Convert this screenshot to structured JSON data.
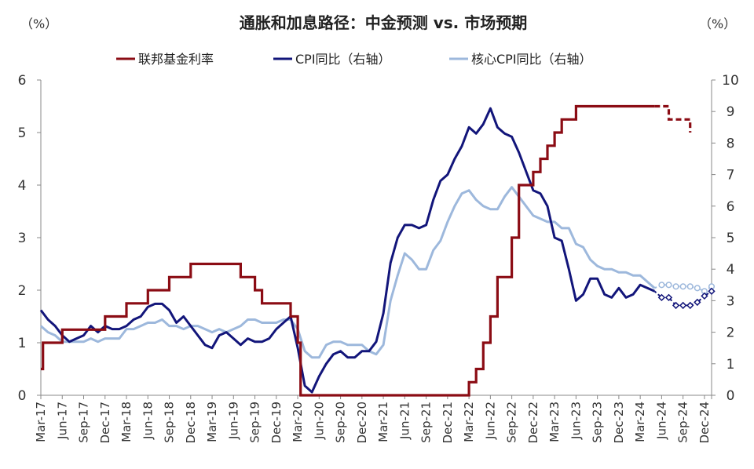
{
  "chart_data": {
    "type": "line",
    "title": "通胀和加息路径：中金预测 vs. 市场预期",
    "left_unit": "（%）",
    "right_unit": "（%）",
    "left_axis": {
      "min": 0,
      "max": 6,
      "step": 1,
      "ticks": [
        "0",
        "1",
        "2",
        "3",
        "4",
        "5",
        "6"
      ]
    },
    "right_axis": {
      "min": 0,
      "max": 10,
      "step": 1,
      "ticks": [
        "0",
        "1",
        "2",
        "3",
        "4",
        "5",
        "6",
        "7",
        "8",
        "9",
        "10"
      ]
    },
    "legend": [
      "联邦基金利率",
      "CPI同比（右轴）",
      "核心CPI同比（右轴）"
    ],
    "x_start": "2017-03",
    "x_end": "2024-12",
    "x_tick_labels": [
      "Mar-17",
      "Jun-17",
      "Sep-17",
      "Dec-17",
      "Mar-18",
      "Jun-18",
      "Sep-18",
      "Dec-18",
      "Mar-19",
      "Jun-19",
      "Sep-19",
      "Dec-19",
      "Mar-20",
      "Jun-20",
      "Sep-20",
      "Dec-20",
      "Mar-21",
      "Jun-21",
      "Sep-21",
      "Dec-21",
      "Mar-22",
      "Jun-22",
      "Sep-22",
      "Dec-22",
      "Mar-23",
      "Jun-23",
      "Sep-23",
      "Dec-23",
      "Mar-24",
      "Jun-24",
      "Sep-24",
      "Dec-24"
    ],
    "colors": {
      "fed": "#8b0c14",
      "cpi": "#12157a",
      "core": "#9db8dc",
      "axis": "#888888"
    },
    "series": [
      {
        "name": "联邦基金利率",
        "axis": "left",
        "style": "step",
        "history": [
          [
            0,
            0.5
          ],
          [
            0.3,
            1.0
          ],
          [
            3,
            1.25
          ],
          [
            9,
            1.5
          ],
          [
            12,
            1.75
          ],
          [
            15,
            2.0
          ],
          [
            18,
            2.25
          ],
          [
            21,
            2.5
          ],
          [
            28,
            2.25
          ],
          [
            30,
            2.0
          ],
          [
            31,
            1.75
          ],
          [
            35,
            1.5
          ],
          [
            36,
            1.0
          ],
          [
            36.4,
            0.0
          ],
          [
            60,
            0.25
          ],
          [
            61,
            0.5
          ],
          [
            62,
            1.0
          ],
          [
            63,
            1.5
          ],
          [
            64,
            2.25
          ],
          [
            66,
            3.0
          ],
          [
            67,
            4.0
          ],
          [
            69,
            4.25
          ],
          [
            70,
            4.5
          ],
          [
            71,
            4.75
          ],
          [
            72,
            5.0
          ],
          [
            73,
            5.25
          ],
          [
            75,
            5.5
          ],
          [
            86,
            5.5
          ]
        ],
        "forecast": [
          [
            86,
            5.5
          ],
          [
            87,
            5.5
          ],
          [
            88,
            5.25
          ],
          [
            90,
            5.25
          ],
          [
            91,
            5.0
          ]
        ]
      },
      {
        "name": "CPI同比（右轴）",
        "axis": "right",
        "history": [
          [
            0,
            2.7
          ],
          [
            1,
            2.4
          ],
          [
            2,
            2.2
          ],
          [
            3,
            1.9
          ],
          [
            4,
            1.7
          ],
          [
            5,
            1.8
          ],
          [
            6,
            1.9
          ],
          [
            7,
            2.2
          ],
          [
            8,
            2.0
          ],
          [
            9,
            2.2
          ],
          [
            10,
            2.1
          ],
          [
            11,
            2.1
          ],
          [
            12,
            2.2
          ],
          [
            13,
            2.4
          ],
          [
            14,
            2.5
          ],
          [
            15,
            2.8
          ],
          [
            16,
            2.9
          ],
          [
            17,
            2.9
          ],
          [
            18,
            2.7
          ],
          [
            19,
            2.3
          ],
          [
            20,
            2.5
          ],
          [
            21,
            2.2
          ],
          [
            22,
            1.9
          ],
          [
            23,
            1.6
          ],
          [
            24,
            1.5
          ],
          [
            25,
            1.9
          ],
          [
            26,
            2.0
          ],
          [
            27,
            1.8
          ],
          [
            28,
            1.6
          ],
          [
            29,
            1.8
          ],
          [
            30,
            1.7
          ],
          [
            31,
            1.7
          ],
          [
            32,
            1.8
          ],
          [
            33,
            2.1
          ],
          [
            34,
            2.3
          ],
          [
            35,
            2.5
          ],
          [
            36,
            1.5
          ],
          [
            37,
            0.3
          ],
          [
            38,
            0.1
          ],
          [
            39,
            0.6
          ],
          [
            40,
            1.0
          ],
          [
            41,
            1.3
          ],
          [
            42,
            1.4
          ],
          [
            43,
            1.2
          ],
          [
            44,
            1.2
          ],
          [
            45,
            1.4
          ],
          [
            46,
            1.4
          ],
          [
            47,
            1.7
          ],
          [
            48,
            2.6
          ],
          [
            49,
            4.2
          ],
          [
            50,
            5.0
          ],
          [
            51,
            5.4
          ],
          [
            52,
            5.4
          ],
          [
            53,
            5.3
          ],
          [
            54,
            5.4
          ],
          [
            55,
            6.2
          ],
          [
            56,
            6.8
          ],
          [
            57,
            7.0
          ],
          [
            58,
            7.5
          ],
          [
            59,
            7.9
          ],
          [
            60,
            8.5
          ],
          [
            61,
            8.3
          ],
          [
            62,
            8.6
          ],
          [
            63,
            9.1
          ],
          [
            64,
            8.5
          ],
          [
            65,
            8.3
          ],
          [
            66,
            8.2
          ],
          [
            67,
            7.7
          ],
          [
            68,
            7.1
          ],
          [
            69,
            6.5
          ],
          [
            70,
            6.4
          ],
          [
            71,
            6.0
          ],
          [
            72,
            5.0
          ],
          [
            73,
            4.9
          ],
          [
            74,
            4.0
          ],
          [
            75,
            3.0
          ],
          [
            76,
            3.2
          ],
          [
            77,
            3.7
          ],
          [
            78,
            3.7
          ],
          [
            79,
            3.2
          ],
          [
            80,
            3.1
          ],
          [
            81,
            3.4
          ],
          [
            82,
            3.1
          ],
          [
            83,
            3.2
          ],
          [
            84,
            3.5
          ],
          [
            85,
            3.4
          ],
          [
            86,
            3.3
          ]
        ],
        "forecast": [
          [
            86,
            3.3
          ],
          [
            87,
            3.1
          ],
          [
            88,
            3.1
          ],
          [
            89,
            2.85
          ],
          [
            90,
            2.85
          ],
          [
            91,
            2.85
          ],
          [
            92,
            2.95
          ],
          [
            93,
            3.15
          ],
          [
            94,
            3.3
          ]
        ]
      },
      {
        "name": "核心CPI同比（右轴）",
        "axis": "right",
        "history": [
          [
            0,
            2.2
          ],
          [
            1,
            2.0
          ],
          [
            2,
            1.9
          ],
          [
            3,
            1.7
          ],
          [
            4,
            1.7
          ],
          [
            5,
            1.7
          ],
          [
            6,
            1.7
          ],
          [
            7,
            1.8
          ],
          [
            8,
            1.7
          ],
          [
            9,
            1.8
          ],
          [
            10,
            1.8
          ],
          [
            11,
            1.8
          ],
          [
            12,
            2.1
          ],
          [
            13,
            2.1
          ],
          [
            14,
            2.2
          ],
          [
            15,
            2.3
          ],
          [
            16,
            2.3
          ],
          [
            17,
            2.4
          ],
          [
            18,
            2.2
          ],
          [
            19,
            2.2
          ],
          [
            20,
            2.1
          ],
          [
            21,
            2.2
          ],
          [
            22,
            2.2
          ],
          [
            23,
            2.1
          ],
          [
            24,
            2.0
          ],
          [
            25,
            2.1
          ],
          [
            26,
            2.0
          ],
          [
            27,
            2.1
          ],
          [
            28,
            2.2
          ],
          [
            29,
            2.4
          ],
          [
            30,
            2.4
          ],
          [
            31,
            2.3
          ],
          [
            32,
            2.3
          ],
          [
            33,
            2.3
          ],
          [
            34,
            2.4
          ],
          [
            35,
            2.4
          ],
          [
            36,
            2.1
          ],
          [
            37,
            1.4
          ],
          [
            38,
            1.2
          ],
          [
            39,
            1.2
          ],
          [
            40,
            1.6
          ],
          [
            41,
            1.7
          ],
          [
            42,
            1.7
          ],
          [
            43,
            1.6
          ],
          [
            44,
            1.6
          ],
          [
            45,
            1.6
          ],
          [
            46,
            1.4
          ],
          [
            47,
            1.3
          ],
          [
            48,
            1.6
          ],
          [
            49,
            3.0
          ],
          [
            50,
            3.8
          ],
          [
            51,
            4.5
          ],
          [
            52,
            4.3
          ],
          [
            53,
            4.0
          ],
          [
            54,
            4.0
          ],
          [
            55,
            4.6
          ],
          [
            56,
            4.9
          ],
          [
            57,
            5.5
          ],
          [
            58,
            6.0
          ],
          [
            59,
            6.4
          ],
          [
            60,
            6.5
          ],
          [
            61,
            6.2
          ],
          [
            62,
            6.0
          ],
          [
            63,
            5.9
          ],
          [
            64,
            5.9
          ],
          [
            65,
            6.3
          ],
          [
            66,
            6.6
          ],
          [
            67,
            6.3
          ],
          [
            68,
            6.0
          ],
          [
            69,
            5.7
          ],
          [
            70,
            5.6
          ],
          [
            71,
            5.5
          ],
          [
            72,
            5.5
          ],
          [
            73,
            5.3
          ],
          [
            74,
            5.3
          ],
          [
            75,
            4.8
          ],
          [
            76,
            4.7
          ],
          [
            77,
            4.3
          ],
          [
            78,
            4.1
          ],
          [
            79,
            4.0
          ],
          [
            80,
            4.0
          ],
          [
            81,
            3.9
          ],
          [
            82,
            3.9
          ],
          [
            83,
            3.8
          ],
          [
            84,
            3.8
          ],
          [
            85,
            3.6
          ],
          [
            86,
            3.4
          ]
        ],
        "forecast": [
          [
            86,
            3.4
          ],
          [
            87,
            3.5
          ],
          [
            88,
            3.5
          ],
          [
            89,
            3.45
          ],
          [
            90,
            3.45
          ],
          [
            91,
            3.45
          ],
          [
            92,
            3.4
          ],
          [
            93,
            3.3
          ],
          [
            94,
            3.45
          ]
        ]
      }
    ]
  }
}
